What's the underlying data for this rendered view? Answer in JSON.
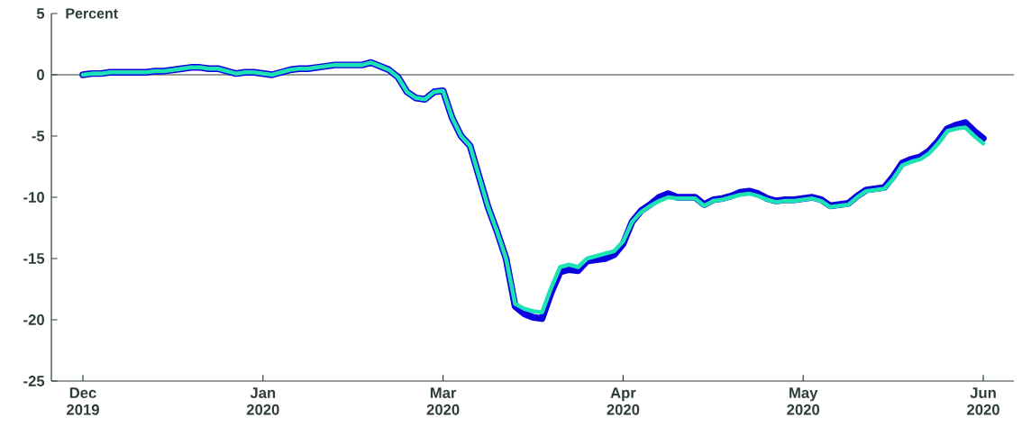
{
  "chart_data": {
    "type": "line",
    "ylabel": "Percent",
    "categories": [
      "Dec 2019",
      null,
      null,
      null,
      null,
      null,
      null,
      null,
      null,
      null,
      null,
      null,
      null,
      null,
      null,
      null,
      null,
      null,
      null,
      null,
      "Jan 2020",
      null,
      null,
      null,
      null,
      null,
      null,
      null,
      null,
      null,
      null,
      null,
      null,
      null,
      null,
      null,
      null,
      null,
      null,
      null,
      "Mar 2020",
      null,
      null,
      null,
      null,
      null,
      null,
      null,
      null,
      null,
      null,
      null,
      null,
      null,
      null,
      null,
      null,
      null,
      null,
      null,
      "Apr 2020",
      null,
      null,
      null,
      null,
      null,
      null,
      null,
      null,
      null,
      null,
      null,
      null,
      null,
      null,
      null,
      null,
      null,
      null,
      null,
      "May 2020",
      null,
      null,
      null,
      null,
      null,
      null,
      null,
      null,
      null,
      null,
      null,
      null,
      null,
      null,
      null,
      null,
      null,
      null,
      null,
      "Jun 2020"
    ],
    "series": [
      {
        "color": "#0a00e0",
        "values": [
          0,
          0.1,
          0.1,
          0.2,
          0.2,
          0.2,
          0.2,
          0.2,
          0.3,
          0.3,
          0.4,
          0.5,
          0.6,
          0.6,
          0.5,
          0.5,
          0.3,
          0.1,
          0.2,
          0.2,
          0.1,
          0.0,
          0.2,
          0.4,
          0.5,
          0.5,
          0.6,
          0.7,
          0.8,
          0.8,
          0.8,
          0.8,
          1.0,
          0.7,
          0.4,
          -0.2,
          -1.4,
          -1.9,
          -2.0,
          -1.4,
          -1.3,
          -3.5,
          -5.0,
          -5.8,
          -8.3,
          -10.8,
          -12.8,
          -15.0,
          -18.9,
          -19.5,
          -19.8,
          -19.9,
          -17.8,
          -16.1,
          -15.9,
          -16.0,
          -15.2,
          -15.1,
          -15.0,
          -14.7,
          -13.8,
          -12.0,
          -11.1,
          -10.6,
          -10.0,
          -9.7,
          -10.0,
          -10.0,
          -10.0,
          -10.6,
          -10.2,
          -10.1,
          -9.9,
          -9.6,
          -9.5,
          -9.7,
          -10.1,
          -10.3,
          -10.2,
          -10.2,
          -10.1,
          -10.0,
          -10.2,
          -10.7,
          -10.6,
          -10.5,
          -9.9,
          -9.4,
          -9.3,
          -9.2,
          -8.3,
          -7.2,
          -6.9,
          -6.7,
          -6.2,
          -5.4,
          -4.4,
          -4.1,
          -3.9,
          -4.6,
          -5.2
        ]
      },
      {
        "color": "#1de2b4",
        "values": [
          0,
          0.1,
          0.1,
          0.2,
          0.2,
          0.2,
          0.2,
          0.2,
          0.3,
          0.3,
          0.4,
          0.5,
          0.6,
          0.6,
          0.5,
          0.5,
          0.3,
          0.1,
          0.2,
          0.2,
          0.1,
          0.0,
          0.2,
          0.4,
          0.5,
          0.5,
          0.6,
          0.7,
          0.8,
          0.8,
          0.8,
          0.8,
          1.0,
          0.7,
          0.4,
          -0.2,
          -1.4,
          -1.9,
          -2.0,
          -1.4,
          -1.3,
          -3.5,
          -5.0,
          -5.8,
          -8.3,
          -10.8,
          -12.8,
          -15.0,
          -18.7,
          -19.1,
          -19.3,
          -19.4,
          -17.4,
          -15.7,
          -15.5,
          -15.7,
          -15.0,
          -14.8,
          -14.6,
          -14.4,
          -13.6,
          -12.0,
          -11.2,
          -10.7,
          -10.3,
          -10.0,
          -10.1,
          -10.1,
          -10.1,
          -10.7,
          -10.3,
          -10.2,
          -10.0,
          -9.8,
          -9.7,
          -9.9,
          -10.2,
          -10.4,
          -10.3,
          -10.3,
          -10.2,
          -10.1,
          -10.3,
          -10.8,
          -10.7,
          -10.6,
          -10.0,
          -9.5,
          -9.4,
          -9.3,
          -8.5,
          -7.4,
          -7.1,
          -6.9,
          -6.4,
          -5.6,
          -4.6,
          -4.4,
          -4.3,
          -5.0,
          -5.6
        ]
      }
    ],
    "ylim": [
      -25,
      5
    ],
    "yticks": [
      5,
      0,
      -5,
      -10,
      -15,
      -20,
      -25
    ],
    "ref_lines": [
      {
        "axis": "y",
        "value": 0,
        "color": "#2d3e36"
      }
    ],
    "grid": false,
    "legend": false,
    "marker": "none",
    "line_style": "solid"
  }
}
